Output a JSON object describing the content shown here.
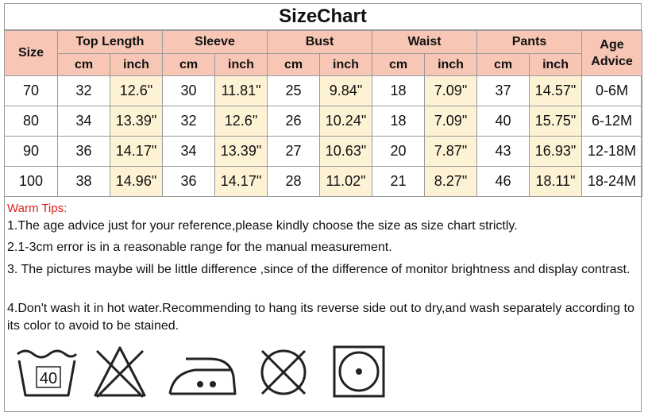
{
  "title": "SizeChart",
  "header": {
    "size": "Size",
    "groups": [
      "Top Length",
      "Sleeve",
      "Bust",
      "Waist",
      "Pants"
    ],
    "age_line1": "Age",
    "age_line2": "Advice",
    "unit_cm": "cm",
    "unit_inch": "inch"
  },
  "rows": [
    {
      "size": "70",
      "top_cm": "32",
      "top_in": "12.6\"",
      "sleeve_cm": "30",
      "sleeve_in": "11.81\"",
      "bust_cm": "25",
      "bust_in": "9.84\"",
      "waist_cm": "18",
      "waist_in": "7.09\"",
      "pants_cm": "37",
      "pants_in": "14.57\"",
      "age": "0-6M"
    },
    {
      "size": "80",
      "top_cm": "34",
      "top_in": "13.39\"",
      "sleeve_cm": "32",
      "sleeve_in": "12.6\"",
      "bust_cm": "26",
      "bust_in": "10.24\"",
      "waist_cm": "18",
      "waist_in": "7.09\"",
      "pants_cm": "40",
      "pants_in": "15.75\"",
      "age": "6-12M"
    },
    {
      "size": "90",
      "top_cm": "36",
      "top_in": "14.17\"",
      "sleeve_cm": "34",
      "sleeve_in": "13.39\"",
      "bust_cm": "27",
      "bust_in": "10.63\"",
      "waist_cm": "20",
      "waist_in": "7.87\"",
      "pants_cm": "43",
      "pants_in": "16.93\"",
      "age": "12-18M"
    },
    {
      "size": "100",
      "top_cm": "38",
      "top_in": "14.96\"",
      "sleeve_cm": "36",
      "sleeve_in": "14.17\"",
      "bust_cm": "28",
      "bust_in": "11.02\"",
      "waist_cm": "21",
      "waist_in": "8.27\"",
      "pants_cm": "46",
      "pants_in": "18.11\"",
      "age": "18-24M"
    }
  ],
  "tips": {
    "heading": "Warm Tips:",
    "items": [
      "1.The age advice just for your reference,please kindly choose the size as size chart strictly.",
      "2.1-3cm error is in a reasonable range for the manual measurement.",
      "3. The pictures maybe will be little difference ,since of the difference of monitor brightness and display contrast.",
      "4.Don't wash it in hot water.Recommending to hang its reverse side out to dry,and wash separately according to its color to avoid to be stained."
    ]
  },
  "care_icons": [
    {
      "icon": "wash-40-icon",
      "label": "40"
    },
    {
      "icon": "no-bleach-icon"
    },
    {
      "icon": "iron-medium-icon"
    },
    {
      "icon": "no-dry-clean-icon"
    },
    {
      "icon": "tumble-dry-icon"
    }
  ],
  "colors": {
    "header_bg": "#f7c6b4",
    "inch_bg": "#fdf2d4",
    "tip_heading": "#e0201b"
  }
}
